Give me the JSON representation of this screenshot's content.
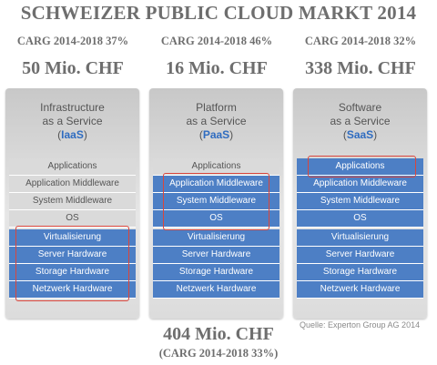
{
  "title": "SCHWEIZER PUBLIC CLOUD MARKT 2014",
  "columns": [
    {
      "carg": "CARG 2014-2018 37%",
      "value": "50 Mio. CHF",
      "heading_line1": "Infrastructure",
      "heading_line2": "as a Service",
      "abbreviation": "IaaS",
      "paren_open": "(",
      "paren_close": ")",
      "layers": [
        "Applications",
        "Application Middleware",
        "System Middleware",
        "OS",
        "Virtualisierung",
        "Server Hardware",
        "Storage Hardware",
        "Netzwerk Hardware"
      ]
    },
    {
      "carg": "CARG 2014-2018 46%",
      "value": "16 Mio. CHF",
      "heading_line1": "Platform",
      "heading_line2": "as a Service",
      "abbreviation": "PaaS",
      "paren_open": "(",
      "paren_close": ")",
      "layers": [
        "Applications",
        "Application Middleware",
        "System Middleware",
        "OS",
        "Virtualisierung",
        "Server Hardware",
        "Storage Hardware",
        "Netzwerk Hardware"
      ]
    },
    {
      "carg": "CARG 2014-2018 32%",
      "value": "338 Mio. CHF",
      "heading_line1": "Software",
      "heading_line2": "as a Service",
      "abbreviation": "SaaS",
      "paren_open": "(",
      "paren_close": ")",
      "layers": [
        "Applications",
        "Application Middleware",
        "System Middleware",
        "OS",
        "Virtualisierung",
        "Server Hardware",
        "Storage Hardware",
        "Netzwerk Hardware"
      ]
    }
  ],
  "total": "404 Mio. CHF",
  "total_carg": "(CARG 2014-2018 33%)",
  "source": "Quelle: Experton Group AG 2014",
  "colors": {
    "layer_blue": "#4d7fc5",
    "layer_light": "#dadada",
    "highlight_red": "#d9463c",
    "abbreviation_blue": "#2f6cc0"
  }
}
